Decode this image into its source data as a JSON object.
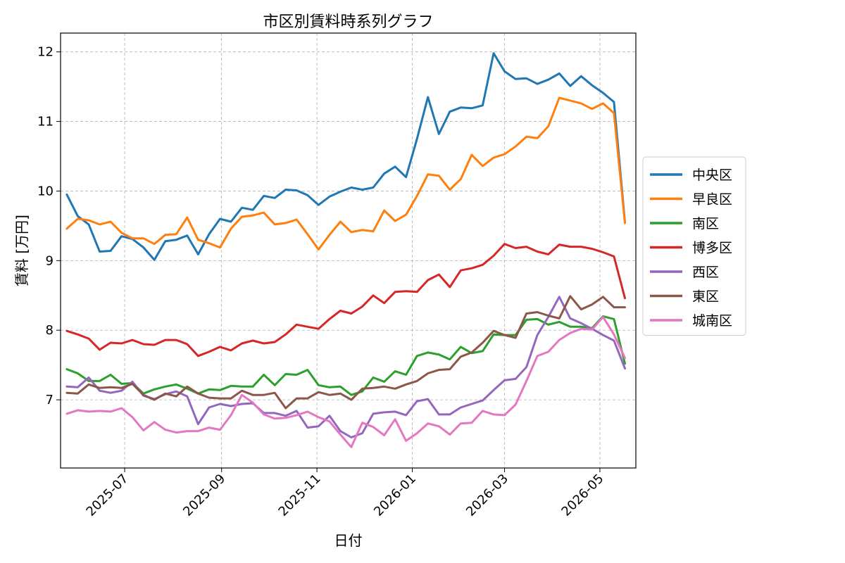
{
  "chart_data": {
    "type": "line",
    "title": "市区別賃料時系列グラフ",
    "xlabel": "日付",
    "ylabel": "賃料 [万円]",
    "x_ticks": [
      "2025-07",
      "2025-09",
      "2025-11",
      "2026-01",
      "2026-03",
      "2026-05"
    ],
    "y_ticks": [
      "7",
      "8",
      "9",
      "10",
      "11",
      "12"
    ],
    "ylim": [
      6.02,
      12.27
    ],
    "xlim": [
      "2025-05-21",
      "2026-05-24"
    ],
    "grid": true,
    "legend_position": "center-right",
    "x": [
      "2025-05-25",
      "2025-06-01",
      "2025-06-08",
      "2025-06-15",
      "2025-06-22",
      "2025-06-29",
      "2025-07-06",
      "2025-07-13",
      "2025-07-20",
      "2025-07-27",
      "2025-08-03",
      "2025-08-10",
      "2025-08-17",
      "2025-08-24",
      "2025-08-31",
      "2025-09-07",
      "2025-09-14",
      "2025-09-21",
      "2025-09-28",
      "2025-10-05",
      "2025-10-12",
      "2025-10-19",
      "2025-10-26",
      "2025-11-02",
      "2025-11-09",
      "2025-11-16",
      "2025-11-23",
      "2025-11-30",
      "2025-12-07",
      "2025-12-14",
      "2025-12-21",
      "2025-12-28",
      "2026-01-04",
      "2026-01-11",
      "2026-01-18",
      "2026-01-25",
      "2026-02-01",
      "2026-02-08",
      "2026-02-15",
      "2026-02-22",
      "2026-03-01",
      "2026-03-08",
      "2026-03-15",
      "2026-03-22",
      "2026-03-29",
      "2026-04-05",
      "2026-04-12",
      "2026-04-19",
      "2026-04-26",
      "2026-05-03",
      "2026-05-10",
      "2026-05-17"
    ],
    "series": [
      {
        "name": "中央区",
        "color": "#1f77b4",
        "values": [
          9.95,
          9.64,
          9.52,
          9.13,
          9.14,
          9.35,
          9.31,
          9.19,
          9.01,
          9.28,
          9.3,
          9.36,
          9.09,
          9.38,
          9.6,
          9.56,
          9.76,
          9.73,
          9.93,
          9.9,
          10.02,
          10.01,
          9.94,
          9.8,
          9.92,
          9.99,
          10.05,
          10.02,
          10.05,
          10.25,
          10.35,
          10.2,
          10.75,
          11.35,
          10.82,
          11.14,
          11.2,
          11.19,
          11.23,
          11.98,
          11.72,
          11.61,
          11.62,
          11.54,
          11.6,
          11.69,
          11.51,
          11.65,
          11.52,
          11.41,
          11.28,
          9.55
        ]
      },
      {
        "name": "早良区",
        "color": "#ff7f0e",
        "values": [
          9.46,
          9.6,
          9.58,
          9.52,
          9.56,
          9.4,
          9.32,
          9.32,
          9.24,
          9.37,
          9.38,
          9.62,
          9.3,
          9.25,
          9.19,
          9.46,
          9.63,
          9.65,
          9.69,
          9.52,
          9.54,
          9.59,
          9.38,
          9.16,
          9.37,
          9.56,
          9.41,
          9.44,
          9.42,
          9.72,
          9.57,
          9.66,
          9.93,
          10.24,
          10.22,
          10.02,
          10.17,
          10.52,
          10.36,
          10.48,
          10.53,
          10.64,
          10.78,
          10.76,
          10.93,
          11.34,
          11.3,
          11.26,
          11.18,
          11.26,
          11.12,
          9.54
        ]
      },
      {
        "name": "南区",
        "color": "#2ca02c",
        "values": [
          7.44,
          7.38,
          7.27,
          7.27,
          7.36,
          7.23,
          7.24,
          7.09,
          7.15,
          7.19,
          7.22,
          7.16,
          7.09,
          7.15,
          7.14,
          7.2,
          7.19,
          7.19,
          7.36,
          7.21,
          7.37,
          7.36,
          7.43,
          7.21,
          7.18,
          7.19,
          7.07,
          7.12,
          7.32,
          7.26,
          7.41,
          7.36,
          7.63,
          7.68,
          7.65,
          7.58,
          7.76,
          7.67,
          7.7,
          7.94,
          7.93,
          7.93,
          8.15,
          8.16,
          8.08,
          8.12,
          8.05,
          8.05,
          8.03,
          8.2,
          8.16,
          7.52
        ]
      },
      {
        "name": "博多区",
        "color": "#d62728",
        "values": [
          7.99,
          7.94,
          7.88,
          7.72,
          7.82,
          7.81,
          7.86,
          7.8,
          7.79,
          7.86,
          7.86,
          7.8,
          7.63,
          7.69,
          7.76,
          7.71,
          7.81,
          7.85,
          7.81,
          7.83,
          7.94,
          8.08,
          8.05,
          8.02,
          8.16,
          8.28,
          8.24,
          8.34,
          8.5,
          8.39,
          8.55,
          8.56,
          8.55,
          8.72,
          8.8,
          8.62,
          8.86,
          8.89,
          8.94,
          9.07,
          9.24,
          9.18,
          9.2,
          9.13,
          9.09,
          9.23,
          9.2,
          9.2,
          9.17,
          9.12,
          9.06,
          8.46
        ]
      },
      {
        "name": "西区",
        "color": "#9467bd",
        "values": [
          7.19,
          7.18,
          7.32,
          7.13,
          7.1,
          7.13,
          7.26,
          7.06,
          7.01,
          7.08,
          7.12,
          7.05,
          6.65,
          6.89,
          6.94,
          6.91,
          6.94,
          6.95,
          6.81,
          6.81,
          6.77,
          6.84,
          6.6,
          6.62,
          6.77,
          6.55,
          6.46,
          6.52,
          6.8,
          6.82,
          6.83,
          6.78,
          6.98,
          7.01,
          6.79,
          6.79,
          6.89,
          6.94,
          6.99,
          7.14,
          7.28,
          7.3,
          7.47,
          7.93,
          8.19,
          8.48,
          8.17,
          8.1,
          8.02,
          7.93,
          7.85,
          7.45
        ]
      },
      {
        "name": "東区",
        "color": "#8c564b",
        "values": [
          7.1,
          7.09,
          7.22,
          7.17,
          7.18,
          7.17,
          7.23,
          7.07,
          7.0,
          7.09,
          7.05,
          7.19,
          7.09,
          7.03,
          7.02,
          7.02,
          7.13,
          7.07,
          7.07,
          7.1,
          6.88,
          7.02,
          7.02,
          7.11,
          7.07,
          7.09,
          7.0,
          7.16,
          7.17,
          7.19,
          7.16,
          7.22,
          7.27,
          7.38,
          7.43,
          7.44,
          7.62,
          7.68,
          7.82,
          7.99,
          7.93,
          7.89,
          8.24,
          8.26,
          8.21,
          8.17,
          8.49,
          8.3,
          8.37,
          8.48,
          8.33,
          8.33
        ]
      },
      {
        "name": "城南区",
        "color": "#e377c2",
        "values": [
          6.8,
          6.85,
          6.83,
          6.84,
          6.83,
          6.88,
          6.75,
          6.56,
          6.68,
          6.57,
          6.53,
          6.55,
          6.55,
          6.6,
          6.57,
          6.78,
          7.07,
          6.96,
          6.79,
          6.73,
          6.74,
          6.78,
          6.83,
          6.75,
          6.69,
          6.5,
          6.32,
          6.67,
          6.61,
          6.49,
          6.72,
          6.41,
          6.52,
          6.66,
          6.62,
          6.5,
          6.66,
          6.67,
          6.84,
          6.79,
          6.78,
          6.93,
          7.27,
          7.63,
          7.69,
          7.86,
          7.96,
          8.02,
          8.01,
          8.19,
          7.94,
          7.6
        ]
      }
    ]
  }
}
